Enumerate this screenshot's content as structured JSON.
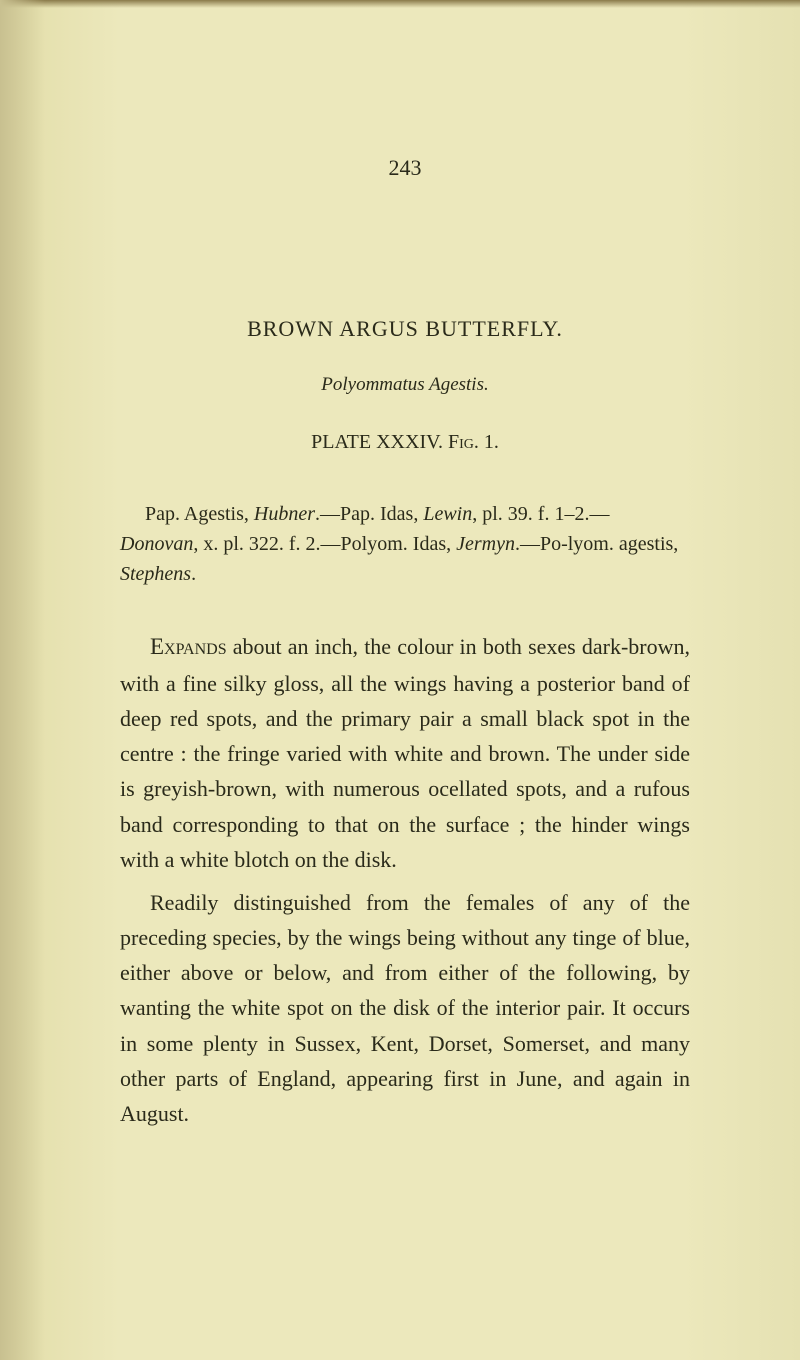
{
  "pageNumber": "243",
  "title": "BROWN ARGUS BUTTERFLY.",
  "subtitle": "Polyommatus Agestis.",
  "plateRef": {
    "plate": "PLATE XXXIV.",
    "fig": "Fig. 1."
  },
  "references": {
    "line1a": "Pap. Agestis, ",
    "line1b": "Hubner",
    "line1c": ".—Pap. Idas, ",
    "line1d": "Lewin",
    "line1e": ", pl. 39. f. 1–2.— ",
    "line2a": "Donovan",
    "line2b": ", x. pl. 322. f. 2.—Polyom. Idas, ",
    "line2c": "Jermyn",
    "line2d": ".—Po-lyom. agestis, ",
    "line2e": "Stephens",
    "line2f": "."
  },
  "paragraph1": {
    "lead": "Expands",
    "rest": " about an inch, the colour in both sexes dark-brown, with a fine silky gloss, all the wings having a posterior band of deep red spots, and the primary pair a small black spot in the centre : the fringe varied with white and brown. The under side is greyish-brown, with numerous ocellated spots, and a rufous band corresponding to that on the surface ; the hinder wings with a white blotch on the disk."
  },
  "paragraph2": "Readily distinguished from the females of any of the preceding species, by the wings being without any tinge of blue, either above or below, and from either of the following, by wanting the white spot on the disk of the interior pair. It occurs in some plenty in Sussex, Kent, Dorset, Somerset, and many other parts of England, appearing first in June, and again in August.",
  "styling": {
    "pageWidth": 800,
    "pageHeight": 1360,
    "backgroundColor": "#e8e4b8",
    "textColor": "#2a2a1a",
    "bodyFontSize": 22,
    "titleFontSize": 22,
    "subtitleFontSize": 19,
    "refFontSize": 20,
    "lineHeight": 1.6
  }
}
